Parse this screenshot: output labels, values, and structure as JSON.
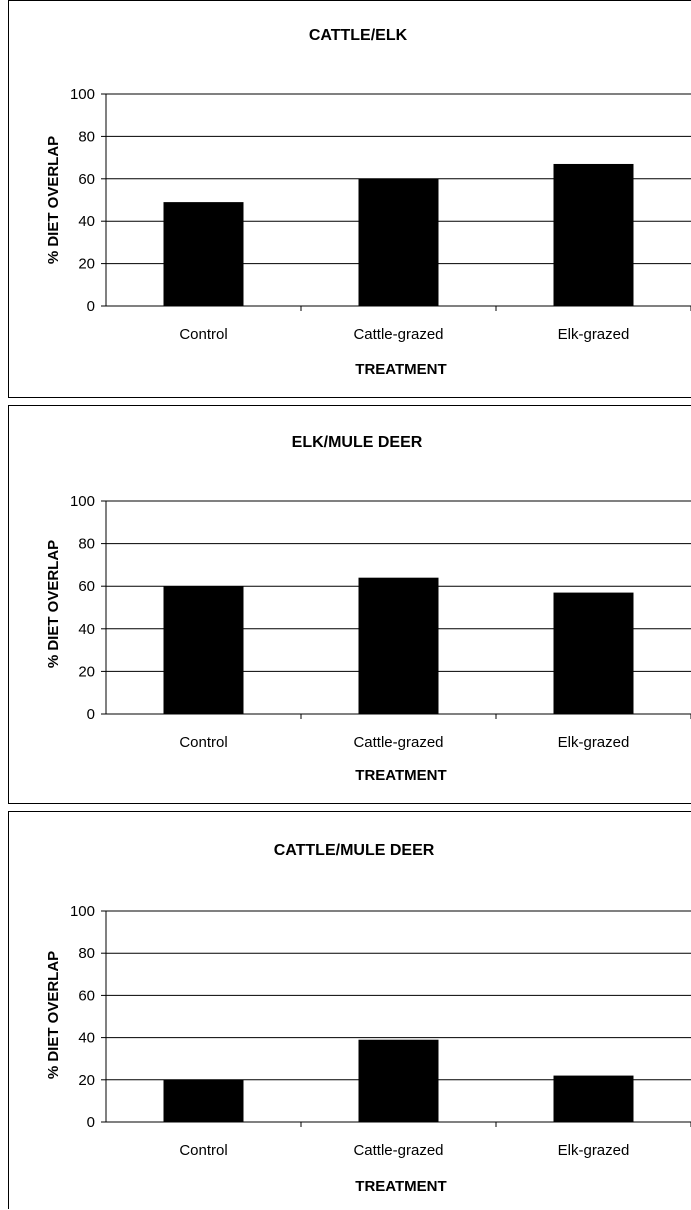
{
  "chart_data": [
    {
      "type": "bar",
      "title": "CATTLE/ELK",
      "xlabel": "TREATMENT",
      "ylabel": "% DIET OVERLAP",
      "categories": [
        "Control",
        "Cattle-grazed",
        "Elk-grazed"
      ],
      "values": [
        49,
        60,
        67
      ],
      "ylim": [
        0,
        100
      ],
      "yticks": [
        "0",
        "20",
        "40",
        "60",
        "80",
        "100"
      ],
      "grid": true,
      "bar_color": "#000000"
    },
    {
      "type": "bar",
      "title": "ELK/MULE DEER",
      "xlabel": "TREATMENT",
      "ylabel": "% DIET OVERLAP",
      "categories": [
        "Control",
        "Cattle-grazed",
        "Elk-grazed"
      ],
      "values": [
        60,
        64,
        57
      ],
      "ylim": [
        0,
        100
      ],
      "yticks": [
        "0",
        "20",
        "40",
        "60",
        "80",
        "100"
      ],
      "grid": true,
      "bar_color": "#000000"
    },
    {
      "type": "bar",
      "title": "CATTLE/MULE DEER",
      "xlabel": "TREATMENT",
      "ylabel": "% DIET OVERLAP",
      "categories": [
        "Control",
        "Cattle-grazed",
        "Elk-grazed"
      ],
      "values": [
        20,
        39,
        22
      ],
      "ylim": [
        0,
        100
      ],
      "yticks": [
        "0",
        "20",
        "40",
        "60",
        "80",
        "100"
      ],
      "grid": true,
      "bar_color": "#000000"
    }
  ]
}
